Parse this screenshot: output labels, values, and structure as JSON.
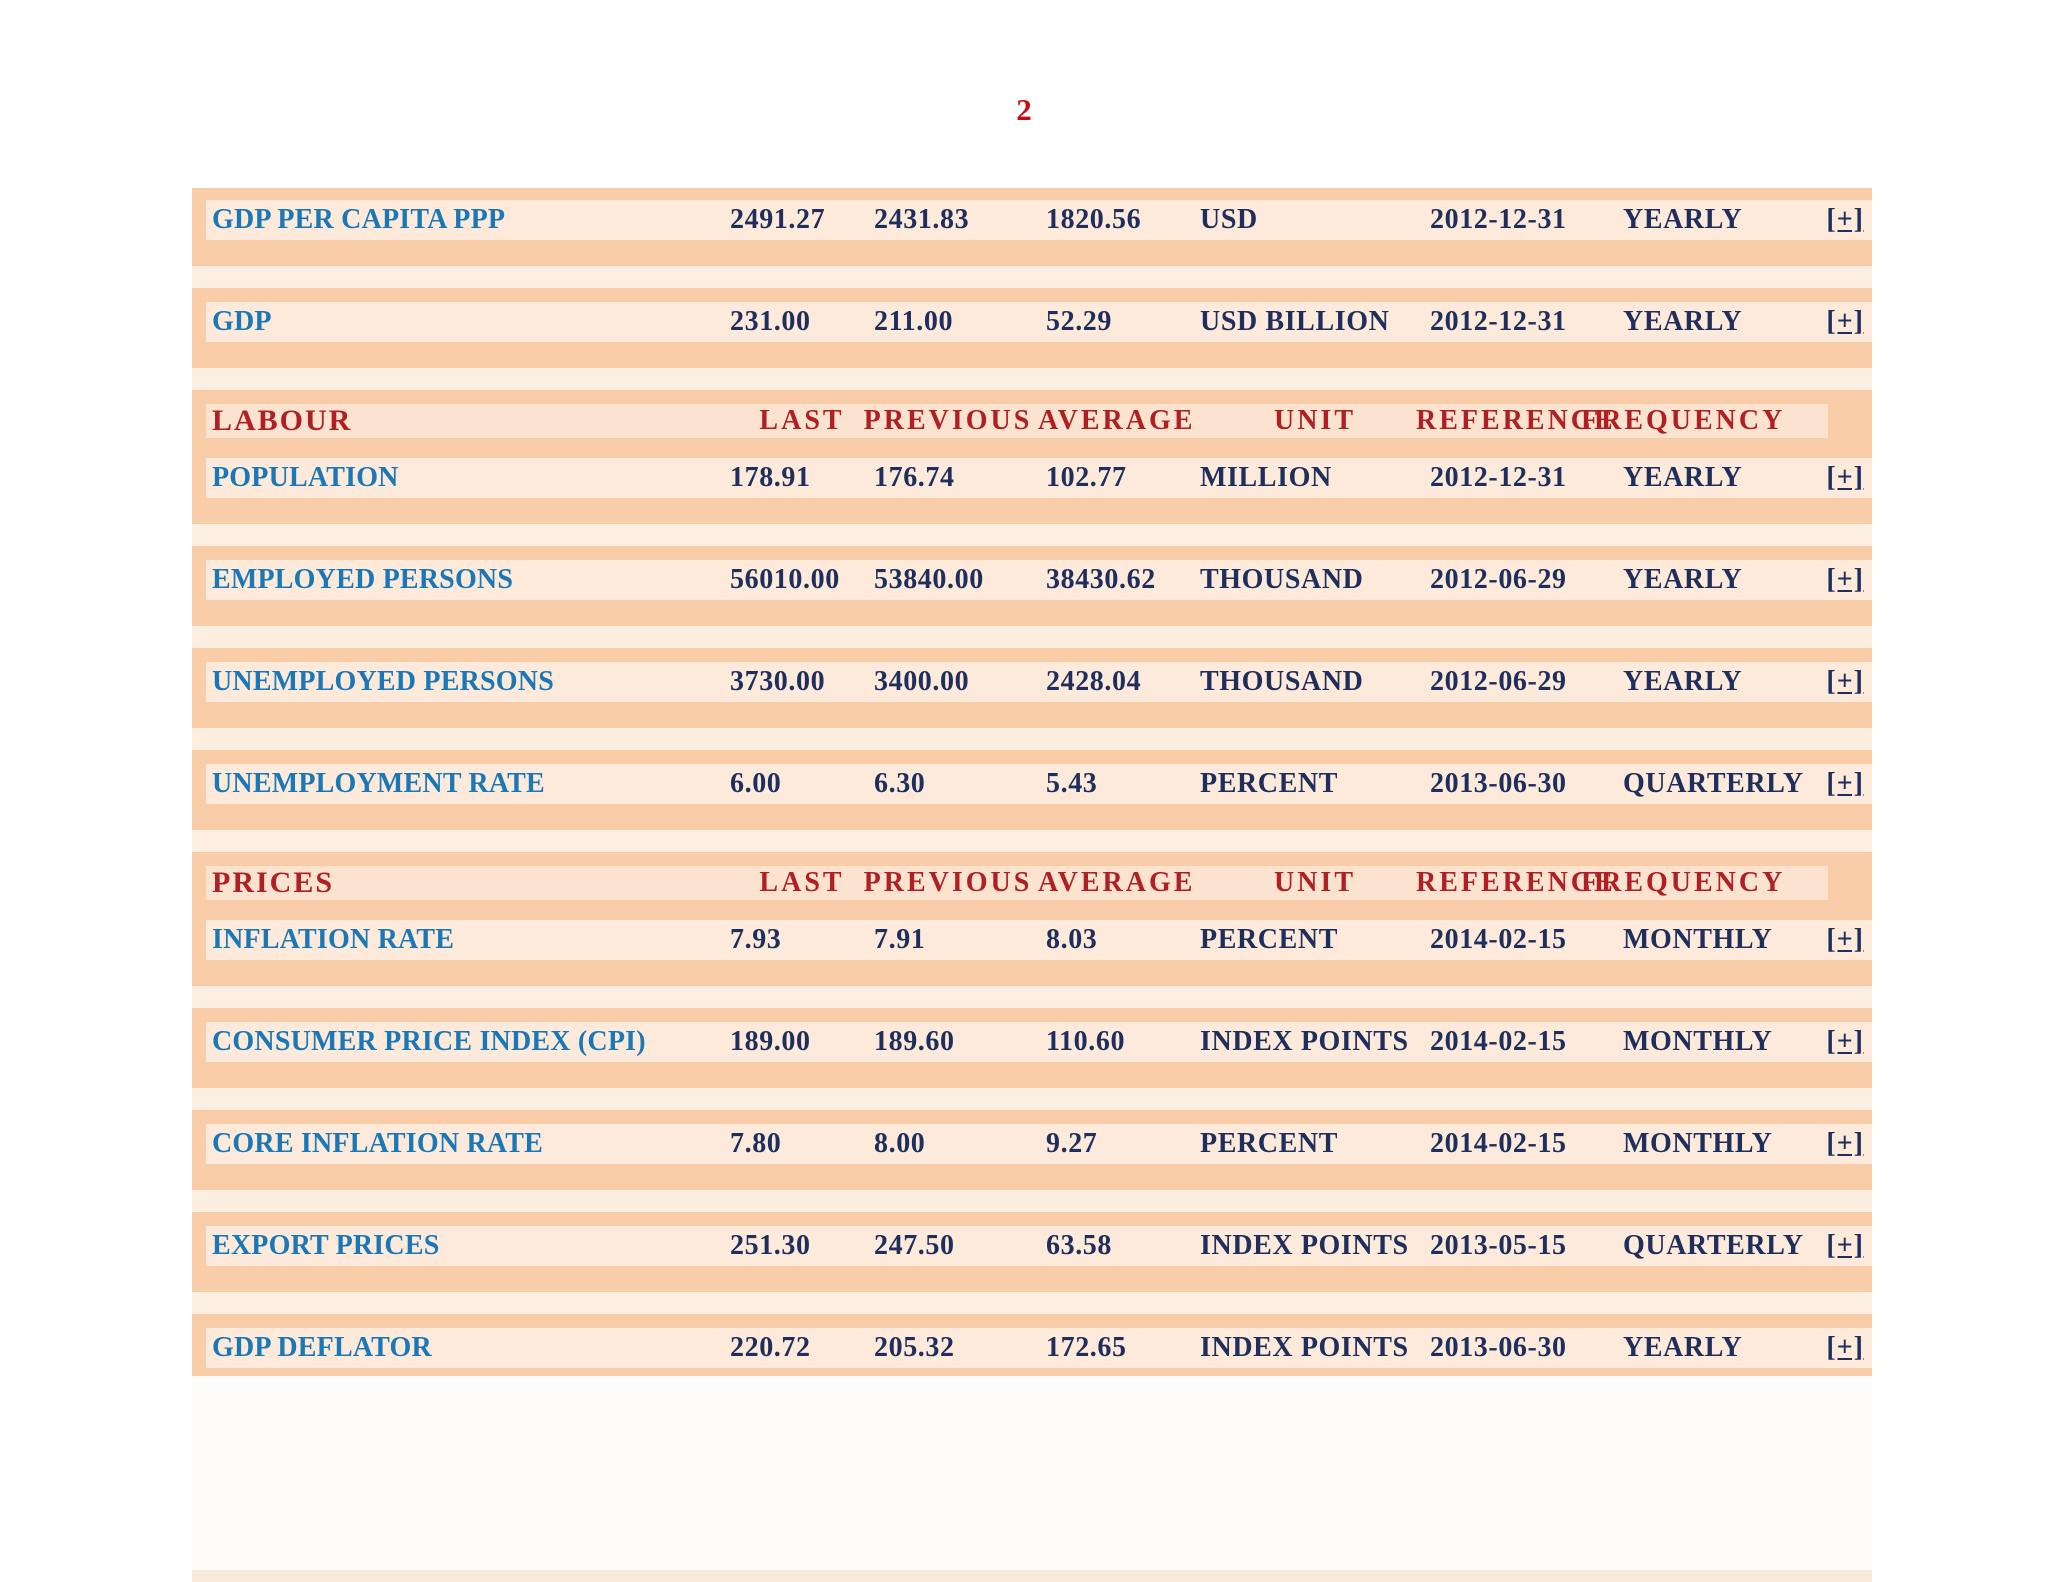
{
  "page": {
    "number": "2"
  },
  "colors": {
    "table_background_orange": "#f8cda8",
    "row_band": "#fdeada",
    "section_header_band": "#fce3cf",
    "pale_gap_strip": "#fcefe2",
    "indicator_link_blue": "#1a78b8",
    "value_navy": "#1e2f5e",
    "column_header_red": "#b01f24",
    "page_number_red": "#c40d10"
  },
  "table": {
    "expand_label": "[+]",
    "header_labels": {
      "last": "LAST",
      "previous": "PREVIOUS",
      "average": "AVERAGE",
      "unit": "UNIT",
      "reference": "REFERENCE",
      "frequency": "FREQUENCY"
    },
    "rows": [
      {
        "type": "data",
        "indicator": "GDP PER CAPITA PPP",
        "last": "2491.27",
        "previous": "2431.83",
        "average": "1820.56",
        "unit": "USD",
        "reference": "2012-12-31",
        "frequency": "YEARLY"
      },
      {
        "type": "data",
        "indicator": "GDP",
        "last": "231.00",
        "previous": "211.00",
        "average": "52.29",
        "unit": "USD BILLION",
        "reference": "2012-12-31",
        "frequency": "YEARLY"
      },
      {
        "type": "section",
        "title": "LABOUR"
      },
      {
        "type": "data",
        "indicator": "POPULATION",
        "last": "178.91",
        "previous": "176.74",
        "average": "102.77",
        "unit": "MILLION",
        "reference": "2012-12-31",
        "frequency": "YEARLY"
      },
      {
        "type": "data",
        "indicator": "EMPLOYED PERSONS",
        "last": "56010.00",
        "previous": "53840.00",
        "average": "38430.62",
        "unit": "THOUSAND",
        "reference": "2012-06-29",
        "frequency": "YEARLY"
      },
      {
        "type": "data",
        "indicator": "UNEMPLOYED PERSONS",
        "last": "3730.00",
        "previous": "3400.00",
        "average": "2428.04",
        "unit": "THOUSAND",
        "reference": "2012-06-29",
        "frequency": "YEARLY"
      },
      {
        "type": "data",
        "indicator": "UNEMPLOYMENT RATE",
        "last": "6.00",
        "previous": "6.30",
        "average": "5.43",
        "unit": "PERCENT",
        "reference": "2013-06-30",
        "frequency": "QUARTERLY"
      },
      {
        "type": "section",
        "title": "PRICES"
      },
      {
        "type": "data",
        "indicator": "INFLATION RATE",
        "last": "7.93",
        "previous": "7.91",
        "average": "8.03",
        "unit": "PERCENT",
        "reference": "2014-02-15",
        "frequency": "MONTHLY"
      },
      {
        "type": "data",
        "indicator": "CONSUMER PRICE INDEX (CPI)",
        "last": "189.00",
        "previous": "189.60",
        "average": "110.60",
        "unit": "INDEX POINTS",
        "reference": "2014-02-15",
        "frequency": "MONTHLY"
      },
      {
        "type": "data",
        "indicator": "CORE INFLATION RATE",
        "last": "7.80",
        "previous": "8.00",
        "average": "9.27",
        "unit": "PERCENT",
        "reference": "2014-02-15",
        "frequency": "MONTHLY"
      },
      {
        "type": "data",
        "indicator": "EXPORT PRICES",
        "last": "251.30",
        "previous": "247.50",
        "average": "63.58",
        "unit": "INDEX POINTS",
        "reference": "2013-05-15",
        "frequency": "QUARTERLY"
      },
      {
        "type": "data",
        "indicator": "GDP DEFLATOR",
        "last": "220.72",
        "previous": "205.32",
        "average": "172.65",
        "unit": "INDEX POINTS",
        "reference": "2013-06-30",
        "frequency": "YEARLY"
      }
    ]
  }
}
